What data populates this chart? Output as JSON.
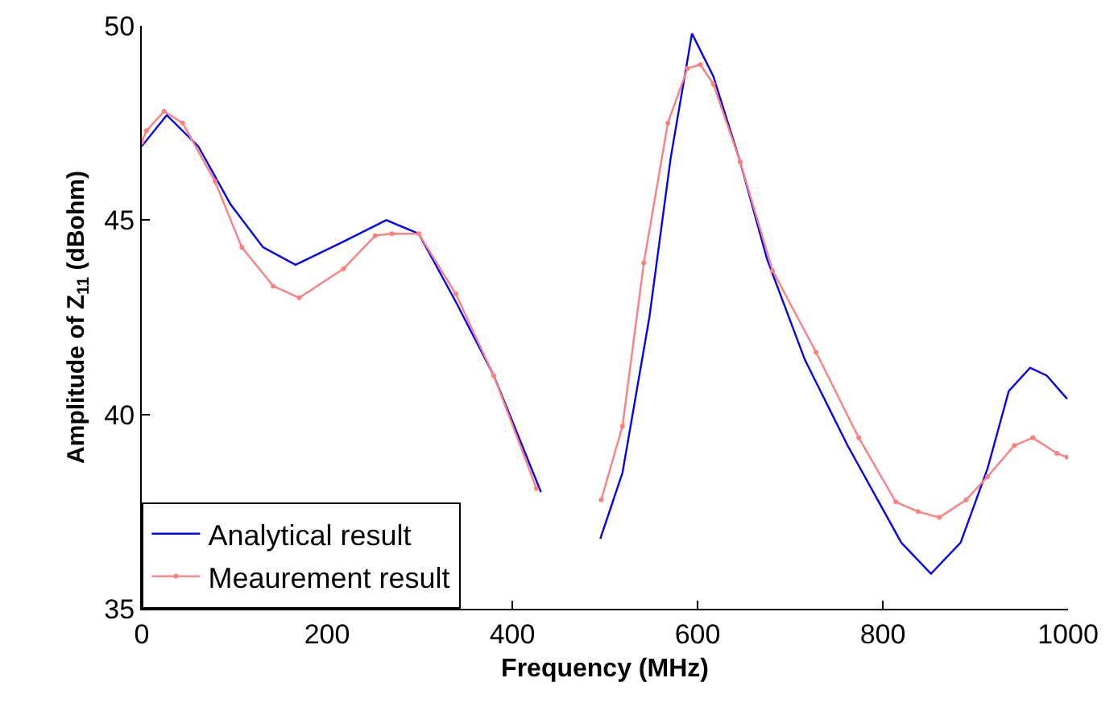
{
  "chart_data": {
    "type": "line",
    "xlabel": "Frequency (MHz)",
    "ylabel": "Amplitude of Z$_{11}$ (dBohm)",
    "xlim": [
      0,
      1000
    ],
    "ylim": [
      35,
      50
    ],
    "xticks": [
      0,
      200,
      400,
      600,
      800,
      1000
    ],
    "yticks": [
      35,
      40,
      45,
      50
    ],
    "grid": false,
    "legend": "bottom left",
    "line_style": "solid",
    "series": [
      {
        "name": "Analytical result",
        "color": "#0000ff",
        "marker": "none",
        "x": [
          0,
          27,
          61,
          96,
          131,
          166,
          218,
          264,
          299,
          339,
          380,
          409,
          431,
          463,
          495,
          519,
          548,
          571,
          594,
          617,
          646,
          675,
          716,
          762,
          820,
          852,
          884,
          913,
          936,
          959,
          977,
          999
        ],
        "values": [
          46.9,
          47.7,
          46.9,
          45.4,
          44.3,
          43.85,
          44.45,
          45.0,
          44.65,
          42.9,
          41.0,
          39.3,
          38.0,
          null,
          36.8,
          38.5,
          42.5,
          46.6,
          49.8,
          48.7,
          46.5,
          44.0,
          41.4,
          39.2,
          36.7,
          35.9,
          36.7,
          38.6,
          40.6,
          41.2,
          41.0,
          40.4
        ]
      },
      {
        "name": "Meaurement result",
        "color": "#ff7f7f",
        "marker": "circle",
        "x": [
          0,
          5,
          24,
          44,
          79,
          108,
          142,
          170,
          218,
          252,
          270,
          299,
          339,
          380,
          426,
          463,
          496,
          519,
          542,
          568,
          589,
          603,
          617,
          646,
          681,
          728,
          774,
          814,
          838,
          861,
          890,
          913,
          942,
          962,
          988,
          999
        ],
        "values": [
          47.0,
          47.3,
          47.8,
          47.5,
          46.0,
          44.3,
          43.3,
          43.0,
          43.75,
          44.6,
          44.65,
          44.65,
          43.1,
          41.0,
          38.1,
          null,
          37.8,
          39.7,
          43.9,
          47.5,
          48.9,
          49.0,
          48.5,
          46.5,
          43.7,
          41.6,
          39.4,
          37.75,
          37.5,
          37.35,
          37.8,
          38.4,
          39.2,
          39.4,
          39.0,
          38.9
        ]
      }
    ]
  }
}
